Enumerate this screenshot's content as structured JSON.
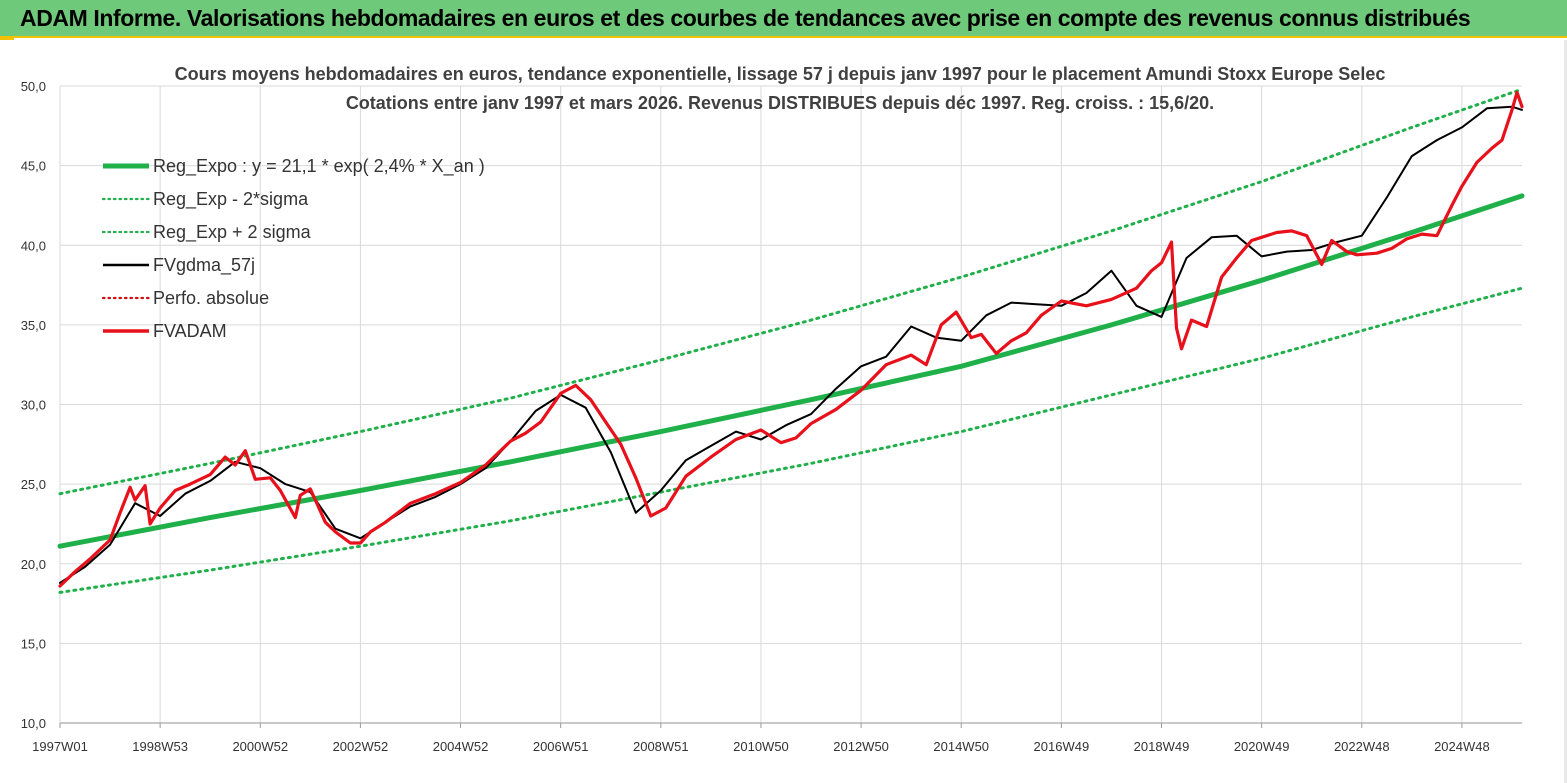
{
  "banner": {
    "title": "ADAM Informe. Valorisations hebdomadaires en euros et des courbes de tendances avec prise en compte des revenus connus distribués",
    "background_color": "#6fc97a",
    "accent_color": "#f2c200"
  },
  "chart_data": {
    "type": "line",
    "title": "Cours moyens hebdomadaires en euros, tendance exponentielle, lissage 57 j depuis janv 1997  pour le placement Amundi Stoxx Europe Selec",
    "subtitle": "Cotations entre janv 1997 et mars 2026. Revenus  DISTRIBUES depuis déc 1997. Reg. croiss. : 15,6/20.",
    "xlabel": "",
    "ylabel": "",
    "ylim": [
      10,
      50
    ],
    "y_ticks": [
      "10,0",
      "15,0",
      "20,0",
      "25,0",
      "30,0",
      "35,0",
      "40,0",
      "45,0",
      "50,0"
    ],
    "x_range_years": [
      1997.0,
      2026.2
    ],
    "x_tick_labels": [
      {
        "label": "1997W01",
        "year": 1997.0
      },
      {
        "label": "1998W53",
        "year": 1999.0
      },
      {
        "label": "2000W52",
        "year": 2001.0
      },
      {
        "label": "2002W52",
        "year": 2003.0
      },
      {
        "label": "2004W52",
        "year": 2005.0
      },
      {
        "label": "2006W51",
        "year": 2007.0
      },
      {
        "label": "2008W51",
        "year": 2009.0
      },
      {
        "label": "2010W50",
        "year": 2011.0
      },
      {
        "label": "2012W50",
        "year": 2013.0
      },
      {
        "label": "2014W50",
        "year": 2015.0
      },
      {
        "label": "2016W49",
        "year": 2017.0
      },
      {
        "label": "2018W49",
        "year": 2019.0
      },
      {
        "label": "2020W49",
        "year": 2021.0
      },
      {
        "label": "2022W48",
        "year": 2023.0
      },
      {
        "label": "2024W48",
        "year": 2025.0
      }
    ],
    "grid": true,
    "legend_position": "top-left",
    "series": [
      {
        "name": "Reg_Expo : y = 21,1 * exp( 2,4% *  X_an )",
        "color": "#1fb04a",
        "style": "solid-thick",
        "x": [
          1997.0,
          2000.0,
          2003.0,
          2006.0,
          2009.0,
          2012.0,
          2015.0,
          2018.0,
          2021.0,
          2024.0,
          2026.2
        ],
        "y": [
          21.1,
          22.9,
          24.6,
          26.4,
          28.3,
          30.3,
          32.4,
          35.0,
          37.8,
          40.8,
          43.1
        ]
      },
      {
        "name": "Reg_Exp - 2*sigma",
        "color": "#1fb04a",
        "style": "dotted",
        "x": [
          1997.0,
          2000.0,
          2003.0,
          2006.0,
          2009.0,
          2012.0,
          2015.0,
          2018.0,
          2021.0,
          2024.0,
          2026.2
        ],
        "y": [
          18.2,
          19.6,
          21.1,
          22.7,
          24.5,
          26.3,
          28.3,
          30.6,
          32.9,
          35.5,
          37.3
        ]
      },
      {
        "name": "Reg_Exp + 2 sigma",
        "color": "#1fb04a",
        "style": "dotted",
        "x": [
          1997.0,
          2000.0,
          2003.0,
          2006.0,
          2009.0,
          2012.0,
          2015.0,
          2018.0,
          2021.0,
          2024.0,
          2026.2
        ],
        "y": [
          24.4,
          26.3,
          28.3,
          30.4,
          32.8,
          35.3,
          38.0,
          40.9,
          44.0,
          47.4,
          49.8
        ]
      },
      {
        "name": "FVgdma_57j",
        "color": "#000000",
        "style": "solid",
        "x": [
          1997.0,
          1997.5,
          1998.0,
          1998.5,
          1999.0,
          1999.5,
          2000.0,
          2000.5,
          2001.0,
          2001.5,
          2002.0,
          2002.5,
          2003.0,
          2003.5,
          2004.0,
          2004.5,
          2005.0,
          2005.5,
          2006.0,
          2006.5,
          2007.0,
          2007.5,
          2008.0,
          2008.5,
          2009.0,
          2009.5,
          2010.0,
          2010.5,
          2011.0,
          2011.5,
          2012.0,
          2012.5,
          2013.0,
          2013.5,
          2014.0,
          2014.5,
          2015.0,
          2015.5,
          2016.0,
          2016.5,
          2017.0,
          2017.5,
          2018.0,
          2018.5,
          2019.0,
          2019.5,
          2020.0,
          2020.5,
          2021.0,
          2021.5,
          2022.0,
          2022.5,
          2023.0,
          2023.5,
          2024.0,
          2024.5,
          2025.0,
          2025.5,
          2026.0,
          2026.2
        ],
        "y": [
          18.8,
          19.8,
          21.2,
          23.8,
          23.0,
          24.4,
          25.2,
          26.4,
          26.0,
          25.0,
          24.5,
          22.2,
          21.6,
          22.6,
          23.6,
          24.2,
          25.0,
          26.0,
          27.7,
          29.6,
          30.6,
          29.8,
          27.0,
          23.2,
          24.6,
          26.5,
          27.4,
          28.3,
          27.8,
          28.7,
          29.4,
          31.0,
          32.4,
          33.0,
          34.9,
          34.2,
          34.0,
          35.6,
          36.4,
          36.3,
          36.2,
          37.0,
          38.4,
          36.2,
          35.5,
          39.2,
          40.5,
          40.6,
          39.3,
          39.6,
          39.7,
          40.2,
          40.6,
          43.0,
          45.6,
          46.6,
          47.4,
          48.6,
          48.7,
          48.5
        ]
      },
      {
        "name": "Perfo. absolue",
        "color": "#d01010",
        "style": "dotted",
        "x": [],
        "y": []
      },
      {
        "name": "FVADAM",
        "color": "#e8101a",
        "style": "solid-thick",
        "x": [
          1997.0,
          1997.3,
          1997.6,
          1997.8,
          1998.0,
          1998.2,
          1998.4,
          1998.5,
          1998.7,
          1998.8,
          1999.0,
          1999.3,
          1999.6,
          2000.0,
          2000.3,
          2000.5,
          2000.7,
          2000.9,
          2001.2,
          2001.4,
          2001.7,
          2001.8,
          2002.0,
          2002.3,
          2002.5,
          2002.8,
          2003.0,
          2003.2,
          2003.5,
          2004.0,
          2004.5,
          2005.0,
          2005.5,
          2006.0,
          2006.3,
          2006.6,
          2007.0,
          2007.3,
          2007.6,
          2007.9,
          2008.2,
          2008.5,
          2008.8,
          2009.1,
          2009.5,
          2010.0,
          2010.5,
          2011.0,
          2011.4,
          2011.7,
          2012.0,
          2012.5,
          2013.0,
          2013.5,
          2014.0,
          2014.3,
          2014.6,
          2014.9,
          2015.2,
          2015.4,
          2015.7,
          2016.0,
          2016.3,
          2016.6,
          2017.0,
          2017.5,
          2018.0,
          2018.5,
          2018.8,
          2019.0,
          2019.2,
          2019.3,
          2019.4,
          2019.6,
          2019.9,
          2020.2,
          2020.5,
          2020.8,
          2021.0,
          2021.3,
          2021.6,
          2021.9,
          2022.2,
          2022.4,
          2022.7,
          2022.9,
          2023.3,
          2023.6,
          2023.9,
          2024.2,
          2024.5,
          2024.8,
          2025.0,
          2025.3,
          2025.6,
          2025.8,
          2026.0,
          2026.1,
          2026.2
        ],
        "y": [
          18.6,
          19.5,
          20.3,
          20.9,
          21.5,
          23.2,
          24.8,
          24.0,
          24.9,
          22.5,
          23.5,
          24.6,
          25.0,
          25.6,
          26.7,
          26.2,
          27.1,
          25.3,
          25.4,
          24.6,
          22.9,
          24.3,
          24.7,
          22.6,
          22.0,
          21.3,
          21.3,
          22.0,
          22.6,
          23.8,
          24.4,
          25.1,
          26.2,
          27.7,
          28.2,
          28.9,
          30.7,
          31.2,
          30.3,
          28.9,
          27.5,
          25.4,
          23.0,
          23.5,
          25.5,
          26.7,
          27.8,
          28.4,
          27.6,
          27.9,
          28.8,
          29.7,
          30.9,
          32.5,
          33.1,
          32.5,
          35.0,
          35.8,
          34.2,
          34.4,
          33.2,
          34.0,
          34.5,
          35.6,
          36.5,
          36.2,
          36.6,
          37.3,
          38.4,
          38.9,
          40.2,
          34.8,
          33.5,
          35.3,
          34.9,
          38.0,
          39.2,
          40.3,
          40.5,
          40.8,
          40.9,
          40.6,
          38.8,
          40.3,
          39.6,
          39.4,
          39.5,
          39.8,
          40.4,
          40.7,
          40.6,
          42.5,
          43.7,
          45.2,
          46.1,
          46.6,
          48.5,
          49.6,
          48.7
        ]
      }
    ]
  }
}
